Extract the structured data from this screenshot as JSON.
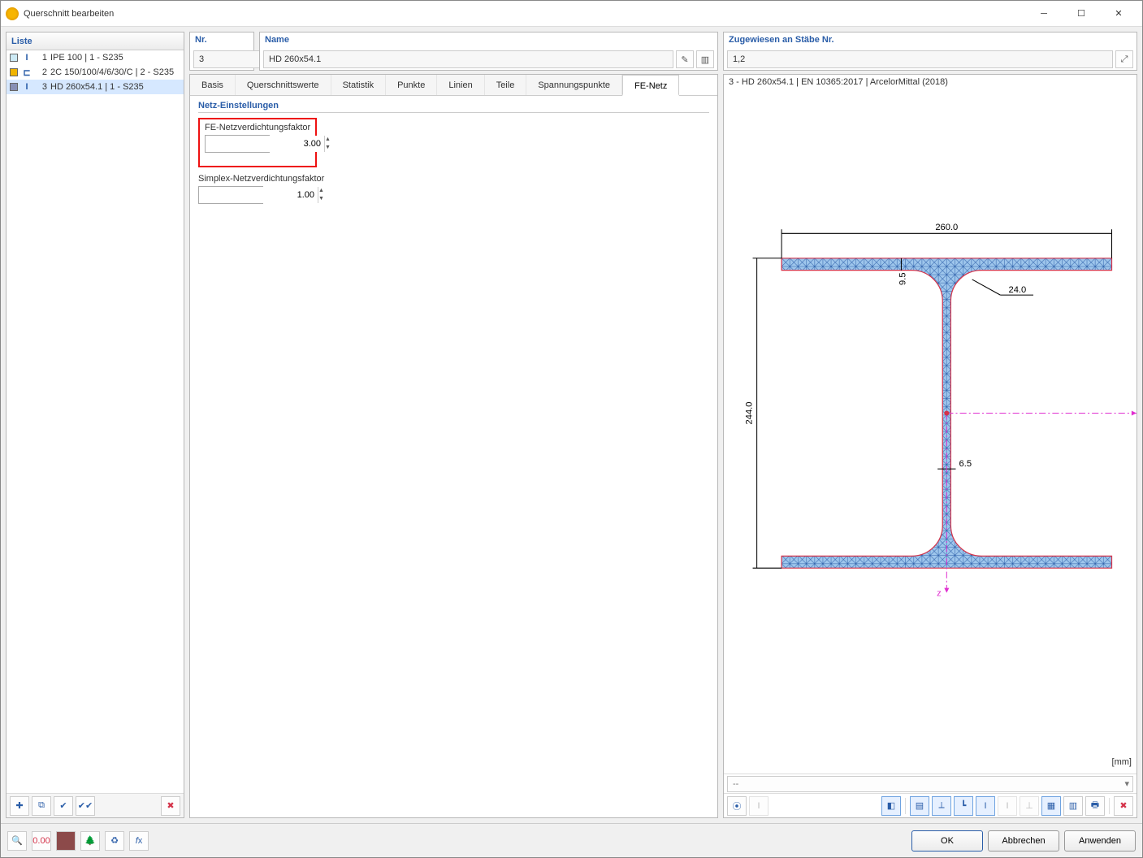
{
  "window": {
    "title": "Querschnitt bearbeiten"
  },
  "liste": {
    "header": "Liste",
    "items": [
      {
        "num": "1",
        "swatch": "#cdeaf5",
        "icon": "I",
        "label": "IPE 100 | 1 - S235"
      },
      {
        "num": "2",
        "swatch": "#f0b400",
        "icon": "⊏",
        "label": "2C 150/100/4/6/30/C | 2 - S235"
      },
      {
        "num": "3",
        "swatch": "#8890b5",
        "icon": "I",
        "label": "HD 260x54.1 | 1 - S235"
      }
    ],
    "selected_index": 2
  },
  "header_fields": {
    "nr": {
      "label": "Nr.",
      "value": "3"
    },
    "name": {
      "label": "Name",
      "value": "HD 260x54.1"
    },
    "assigned": {
      "label": "Zugewiesen an Stäbe Nr.",
      "value": "1,2"
    }
  },
  "tabs": {
    "items": [
      "Basis",
      "Querschnittswerte",
      "Statistik",
      "Punkte",
      "Linien",
      "Teile",
      "Spannungspunkte",
      "FE-Netz"
    ],
    "active_index": 7
  },
  "mesh_settings": {
    "section": "Netz-Einstellungen",
    "fe_label": "FE-Netzverdichtungsfaktor",
    "fe_value": "3.00",
    "simplex_label": "Simplex-Netzverdichtungsfaktor",
    "simplex_value": "1.00"
  },
  "preview": {
    "title": "3 - HD 260x54.1 | EN 10365:2017 | ArcelorMittal (2018)",
    "unit": "[mm]",
    "combo_text": "--",
    "section": {
      "width": 260.0,
      "height": 244.0,
      "flange_thickness": 9.5,
      "web_thickness": 6.5,
      "root_radius": 24.0,
      "fill_color": "#9ec6ec",
      "mesh_stroke": "#2a5da8",
      "outline_stroke": "#d4334a",
      "axis_color": "#e030d0",
      "dim_color": "#000000"
    }
  },
  "left_toolbar": {
    "buttons": [
      "new",
      "copy",
      "apply-section",
      "apply-all"
    ],
    "delete": "delete"
  },
  "preview_toolbar": {
    "left_buttons": [
      "stress-points",
      "mesh-refinement"
    ],
    "right_buttons": [
      "color-fill",
      "show-values",
      "show-axes",
      "local-cs",
      "show-profile",
      "dim-all",
      "dim-none",
      "grid",
      "table",
      "print",
      "options"
    ],
    "active_indices_right": [
      0,
      1,
      2,
      3,
      4,
      7
    ]
  },
  "footer_toolbar": {
    "buttons": [
      "help",
      "units",
      "color",
      "tree",
      "calc",
      "fx"
    ]
  },
  "dialog_buttons": {
    "ok": "OK",
    "cancel": "Abbrechen",
    "apply": "Anwenden"
  }
}
